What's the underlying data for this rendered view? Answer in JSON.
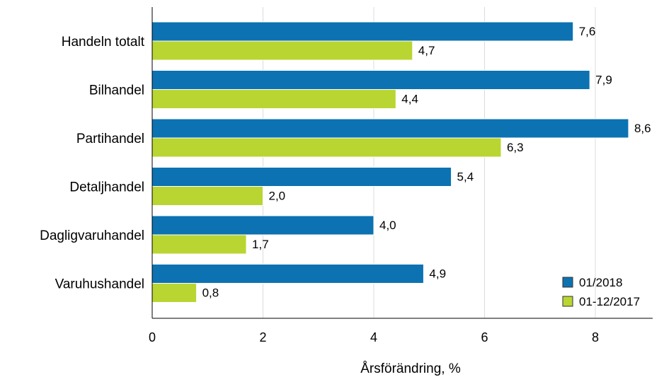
{
  "chart_data": {
    "type": "bar",
    "orientation": "horizontal",
    "categories": [
      "Handeln totalt",
      "Bilhandel",
      "Partihandel",
      "Detaljhandel",
      "Dagligvaruhandel",
      "Varuhushandel"
    ],
    "series": [
      {
        "name": "01/2018",
        "color": "#0c72b2",
        "values": [
          7.6,
          7.9,
          8.6,
          5.4,
          4.0,
          4.9
        ],
        "labels": [
          "7,6",
          "7,9",
          "8,6",
          "5,4",
          "4,0",
          "4,9"
        ]
      },
      {
        "name": "01-12/2017",
        "color": "#b9d531",
        "values": [
          4.7,
          4.4,
          6.3,
          2.0,
          1.7,
          0.8
        ],
        "labels": [
          "4,7",
          "4,4",
          "6,3",
          "2,0",
          "1,7",
          "0,8"
        ]
      }
    ],
    "xlabel": "Årsförändring, %",
    "ylabel": "",
    "xlim": [
      0,
      9.1
    ],
    "xticks": [
      0,
      2,
      4,
      6,
      8
    ],
    "xtick_labels": [
      "0",
      "2",
      "4",
      "6",
      "8"
    ],
    "grid": "vertical",
    "legend_position": "bottom-right"
  }
}
